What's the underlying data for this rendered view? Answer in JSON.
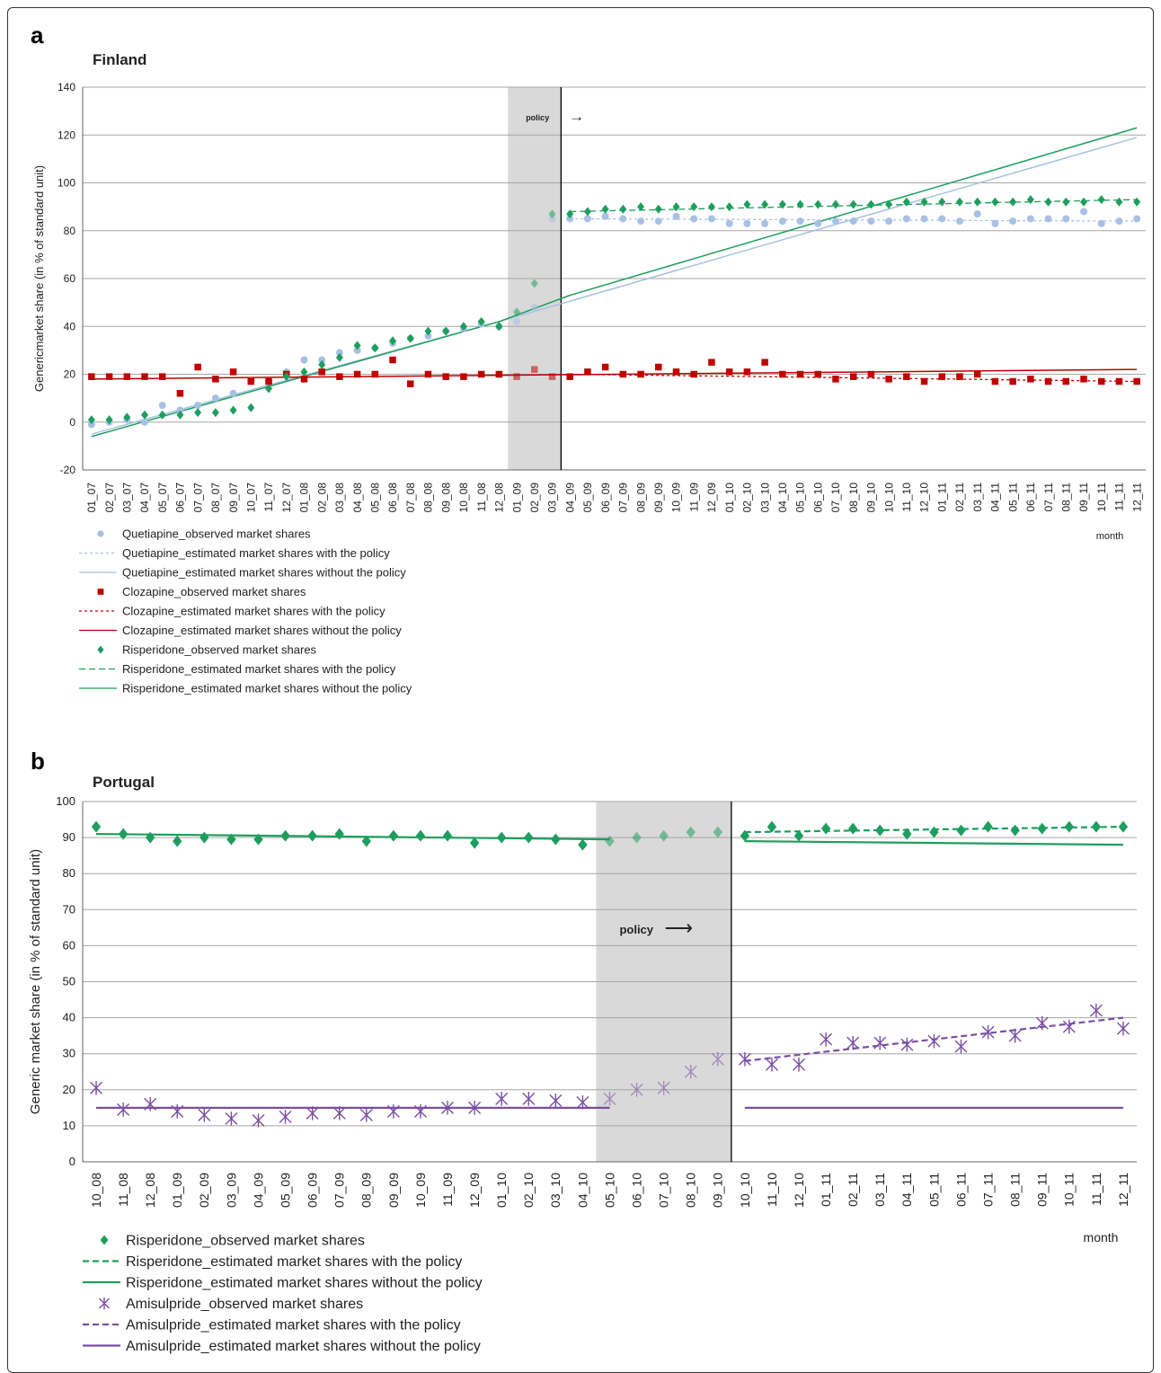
{
  "colors": {
    "quetiapine": "#a7c0e4",
    "clozapine": "#c00000",
    "risperidone": "#1e9e5e",
    "amisulpride": "#7a4fa3",
    "shade": "#d9d9d9",
    "grid": "#a6a6a6"
  },
  "chart_data": [
    {
      "type": "scatter",
      "panel_letter": "a",
      "title": "Finland",
      "xlabel": "month",
      "ylabel": "Genericmarket share (in % of standard unit)",
      "ylim": [
        -20,
        140
      ],
      "yticks": [
        -20,
        0,
        20,
        40,
        60,
        80,
        100,
        120,
        140
      ],
      "grid": true,
      "legend_position": "bottom-left",
      "policy_label": "policy",
      "policy_arrow": "→",
      "shaded_period": [
        "01_09",
        "03_09"
      ],
      "policy_start": "04_09",
      "categories": [
        "01_07",
        "02_07",
        "03_07",
        "04_07",
        "05_07",
        "06_07",
        "07_07",
        "08_07",
        "09_07",
        "10_07",
        "11_07",
        "12_07",
        "01_08",
        "02_08",
        "03_08",
        "04_08",
        "05_08",
        "06_08",
        "07_08",
        "08_08",
        "09_08",
        "10_08",
        "11_08",
        "12_08",
        "01_09",
        "02_09",
        "03_09",
        "04_09",
        "05_09",
        "06_09",
        "07_09",
        "08_09",
        "09_09",
        "10_09",
        "11_09",
        "12_09",
        "01_10",
        "02_10",
        "03_10",
        "04_10",
        "05_10",
        "06_10",
        "07_10",
        "08_10",
        "09_10",
        "10_10",
        "11_10",
        "12_10",
        "01_11",
        "02_11",
        "03_11",
        "04_11",
        "05_11",
        "06_11",
        "07_11",
        "08_11",
        "09_11",
        "10_11",
        "11_11",
        "12_11"
      ],
      "series": [
        {
          "name": "Quetiapine_observed market shares",
          "kind": "circle",
          "color_key": "quetiapine",
          "values": [
            -1,
            0,
            1,
            0,
            7,
            5,
            7,
            10,
            12,
            17,
            17,
            21,
            26,
            26,
            29,
            30,
            31,
            33,
            35,
            36,
            38,
            39,
            41,
            40,
            42,
            48,
            85,
            85,
            85,
            86,
            85,
            84,
            84,
            86,
            85,
            85,
            83,
            83,
            83,
            84,
            84,
            83,
            84,
            84,
            84,
            84,
            85,
            85,
            85,
            84,
            87,
            83,
            84,
            85,
            85,
            85,
            88,
            83,
            84,
            85
          ]
        },
        {
          "name": "Quetiapine_estimated market shares with the policy",
          "kind": "dotted",
          "color_key": "quetiapine",
          "points": [
            [
              "04_09",
              85
            ],
            [
              "12_11",
              84
            ]
          ]
        },
        {
          "name": "Quetiapine_estimated market shares without the policy",
          "kind": "solid",
          "color_key": "quetiapine",
          "points": [
            [
              "01_07",
              -5
            ],
            [
              "12_08",
              42
            ],
            [
              "12_11",
              119
            ]
          ]
        },
        {
          "name": "Clozapine_observed market shares",
          "kind": "square",
          "color_key": "clozapine",
          "values": [
            19,
            19,
            19,
            19,
            19,
            12,
            23,
            18,
            21,
            17,
            17,
            20,
            18,
            21,
            19,
            20,
            20,
            26,
            16,
            20,
            19,
            19,
            20,
            20,
            19,
            22,
            19,
            19,
            21,
            23,
            20,
            20,
            23,
            21,
            20,
            25,
            21,
            21,
            25,
            20,
            20,
            20,
            18,
            19,
            20,
            18,
            19,
            17,
            19,
            19,
            20,
            17,
            17,
            18,
            17,
            17,
            18,
            17,
            17,
            17
          ]
        },
        {
          "name": "Clozapine_estimated market shares with the policy",
          "kind": "dotted",
          "color_key": "clozapine",
          "points": [
            [
              "04_09",
              20
            ],
            [
              "12_11",
              17
            ]
          ]
        },
        {
          "name": "Clozapine_estimated market shares without the policy",
          "kind": "solid",
          "color_key": "clozapine",
          "points": [
            [
              "01_07",
              18
            ],
            [
              "12_11",
              22
            ]
          ]
        },
        {
          "name": "Risperidone_observed market shares",
          "kind": "diamond",
          "color_key": "risperidone",
          "values": [
            1,
            1,
            2,
            3,
            3,
            3,
            4,
            4,
            5,
            6,
            14,
            19,
            21,
            24,
            27,
            32,
            31,
            34,
            35,
            38,
            38,
            40,
            42,
            40,
            46,
            58,
            87,
            87,
            88,
            89,
            89,
            90,
            89,
            90,
            90,
            90,
            90,
            91,
            91,
            91,
            91,
            91,
            91,
            91,
            91,
            91,
            92,
            92,
            92,
            92,
            92,
            92,
            92,
            93,
            92,
            92,
            92,
            93,
            92,
            92
          ]
        },
        {
          "name": "Risperidone_estimated market shares with the policy",
          "kind": "dashed",
          "color_key": "risperidone",
          "points": [
            [
              "04_09",
              88
            ],
            [
              "12_11",
              93
            ]
          ]
        },
        {
          "name": "Risperidone_estimated market shares without the policy",
          "kind": "solid",
          "color_key": "risperidone",
          "points": [
            [
              "01_07",
              -6
            ],
            [
              "12_08",
              42
            ],
            [
              "04_09",
              53
            ],
            [
              "12_11",
              123
            ]
          ]
        }
      ]
    },
    {
      "type": "scatter",
      "panel_letter": "b",
      "title": "Portugal",
      "xlabel": "month",
      "ylabel": "Generic market share (in % of standard unit)",
      "ylim": [
        0,
        100
      ],
      "yticks": [
        0,
        10,
        20,
        30,
        40,
        50,
        60,
        70,
        80,
        90,
        100
      ],
      "grid": true,
      "legend_position": "bottom-left",
      "policy_label": "policy",
      "policy_arrow": "⟶",
      "shaded_period": [
        "05_10",
        "09_10"
      ],
      "policy_start": "10_10",
      "categories": [
        "10_08",
        "11_08",
        "12_08",
        "01_09",
        "02_09",
        "03_09",
        "04_09",
        "05_09",
        "06_09",
        "07_09",
        "08_09",
        "09_09",
        "10_09",
        "11_09",
        "12_09",
        "01_10",
        "02_10",
        "03_10",
        "04_10",
        "05_10",
        "06_10",
        "07_10",
        "08_10",
        "09_10",
        "10_10",
        "11_10",
        "12_10",
        "01_11",
        "02_11",
        "03_11",
        "04_11",
        "05_11",
        "06_11",
        "07_11",
        "08_11",
        "09_11",
        "10_11",
        "11_11",
        "12_11"
      ],
      "series": [
        {
          "name": "Risperidone_observed market shares",
          "kind": "diamond",
          "color_key": "risperidone",
          "values": [
            93,
            91,
            90,
            89,
            90,
            89.5,
            89.5,
            90.5,
            90.5,
            91,
            89,
            90.5,
            90.5,
            90.5,
            88.5,
            90,
            90,
            89.5,
            88,
            89,
            90,
            90.5,
            91.5,
            91.5,
            90.5,
            93,
            90.5,
            92.5,
            92.5,
            92,
            91,
            91.5,
            92,
            93,
            92,
            92.5,
            93,
            93,
            93
          ]
        },
        {
          "name": "Risperidone_estimated market shares with the policy",
          "kind": "dashed",
          "color_key": "risperidone",
          "points": [
            [
              "10_10",
              91.5
            ],
            [
              "12_11",
              93
            ]
          ]
        },
        {
          "name": "Risperidone_estimated market shares without the policy",
          "kind": "solid",
          "color_key": "risperidone",
          "points": [
            [
              "10_08",
              91
            ],
            [
              "05_10",
              89.5
            ]
          ],
          "points_after": [
            [
              "10_10",
              89
            ],
            [
              "12_11",
              88
            ]
          ]
        },
        {
          "name": "Amisulpride_observed market shares",
          "kind": "star",
          "color_key": "amisulpride",
          "values": [
            20.5,
            14.5,
            16,
            14,
            13,
            12,
            11.5,
            12.5,
            13.5,
            13.5,
            13,
            14,
            14,
            15,
            15,
            17.5,
            17.5,
            17,
            16.5,
            17.5,
            20,
            20.5,
            25,
            28.5,
            28.5,
            27,
            27,
            34,
            33,
            33,
            32.5,
            33.5,
            32,
            36,
            35,
            38.5,
            37.5,
            42,
            37
          ]
        },
        {
          "name": "Amisulpride_estimated market shares with the policy",
          "kind": "dashed",
          "color_key": "amisulpride",
          "points": [
            [
              "10_10",
              28
            ],
            [
              "12_11",
              40
            ]
          ]
        },
        {
          "name": "Amisulpride_estimated market shares without the policy",
          "kind": "solid",
          "color_key": "amisulpride",
          "points": [
            [
              "10_08",
              15
            ],
            [
              "05_10",
              15
            ]
          ],
          "points_after": [
            [
              "10_10",
              15
            ],
            [
              "12_11",
              15
            ]
          ]
        }
      ]
    }
  ]
}
